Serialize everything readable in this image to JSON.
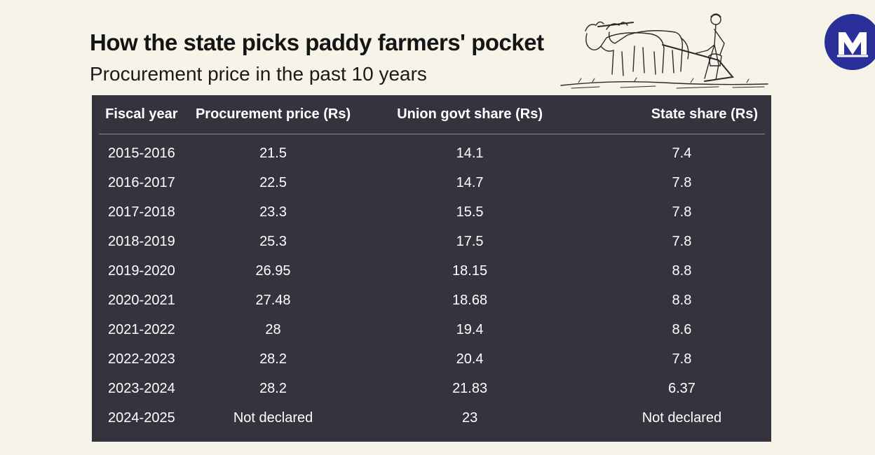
{
  "header": {
    "title": "How the state picks paddy farmers' pocket",
    "subtitle": "Procurement price in the past 10 years"
  },
  "icons": {
    "illustration": "farmer-ploughing-with-oxen-illustration",
    "logo": "m-logo-icon"
  },
  "colors": {
    "background": "#f6f3e8",
    "panel": "#35343e",
    "logo_blue": "#2b2f9a",
    "text_light": "#ffffff",
    "text_dark": "#151515"
  },
  "chart_data": {
    "type": "table",
    "columns": [
      "Fiscal year",
      "Procurement price (Rs)",
      "Union govt share (Rs)",
      "State share (Rs)"
    ],
    "rows": [
      [
        "2015-2016",
        "21.5",
        "14.1",
        "7.4"
      ],
      [
        "2016-2017",
        "22.5",
        "14.7",
        "7.8"
      ],
      [
        "2017-2018",
        "23.3",
        "15.5",
        "7.8"
      ],
      [
        "2018-2019",
        "25.3",
        "17.5",
        "7.8"
      ],
      [
        "2019-2020",
        "26.95",
        "18.15",
        "8.8"
      ],
      [
        "2020-2021",
        "27.48",
        "18.68",
        "8.8"
      ],
      [
        "2021-2022",
        "28",
        "19.4",
        "8.6"
      ],
      [
        "2022-2023",
        "28.2",
        "20.4",
        "7.8"
      ],
      [
        "2023-2024",
        "28.2",
        "21.83",
        "6.37"
      ],
      [
        "2024-2025",
        "Not declared",
        "23",
        "Not declared"
      ]
    ]
  }
}
